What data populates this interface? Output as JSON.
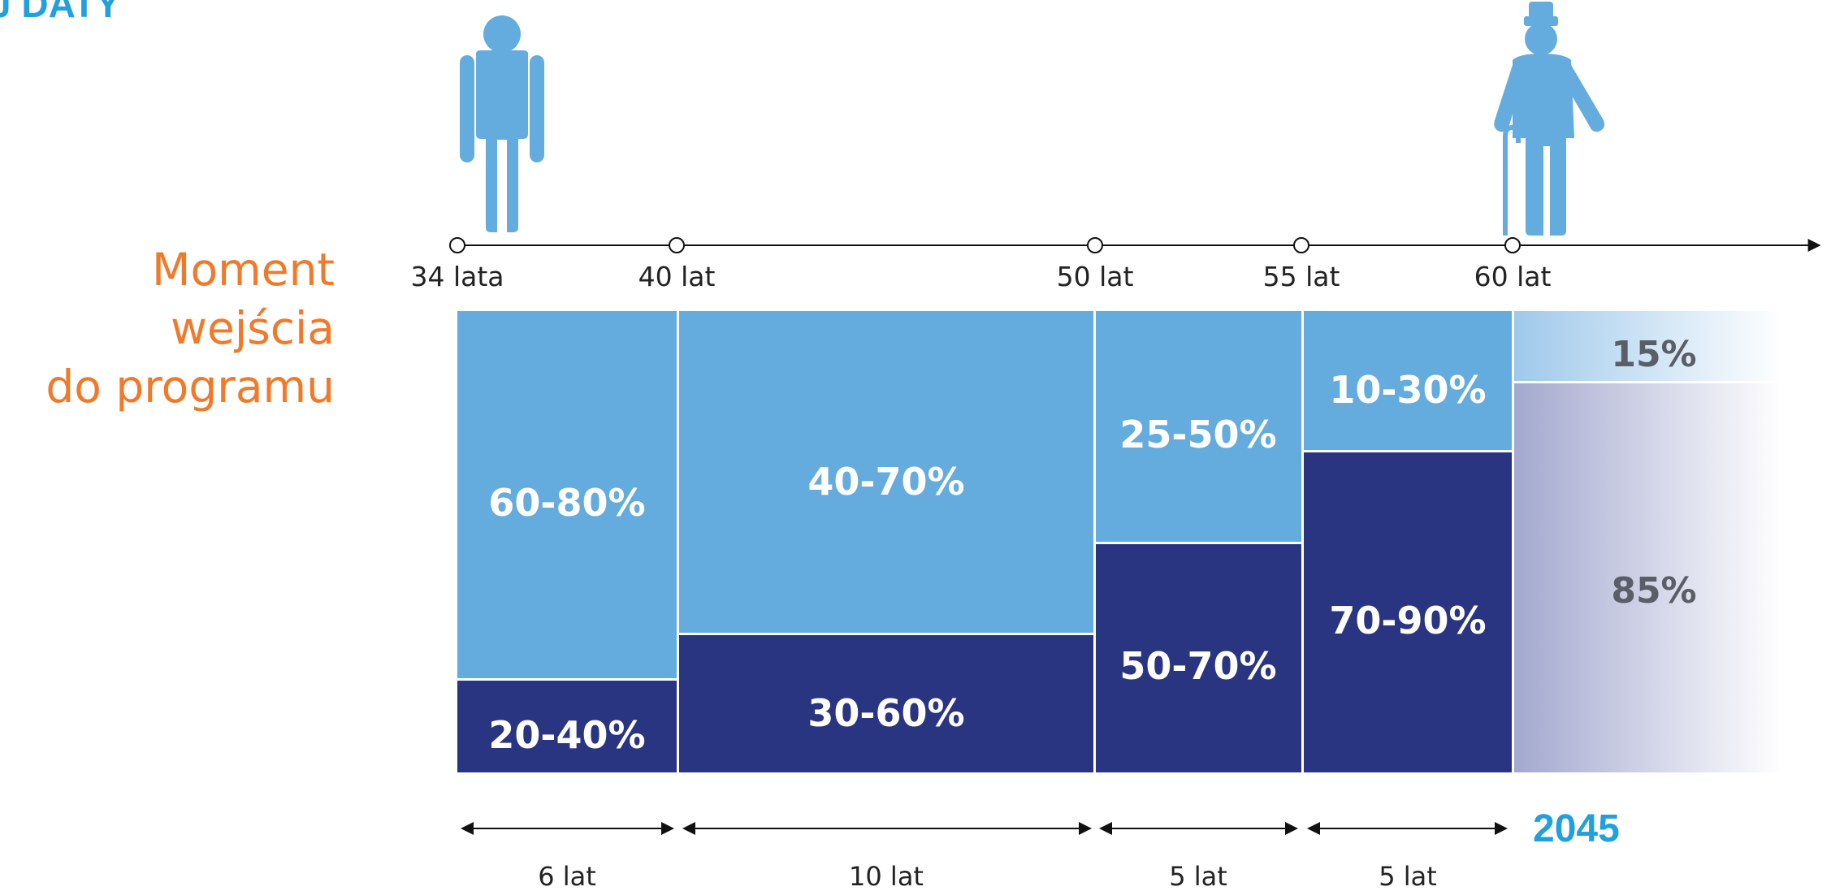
{
  "header": {
    "title_fragment": "J DATY"
  },
  "entry_label": {
    "lines": [
      "Moment",
      "wejścia",
      "do programu"
    ]
  },
  "colors": {
    "light_blue": "#65acde",
    "dark_blue": "#2a3582",
    "accent_orange": "#f07a2a",
    "accent_cyan": "#21a0dc",
    "grey_text": "#5a5e66"
  },
  "icons": [
    "young-person-icon",
    "elderly-person-icon",
    "arrow-right-icon"
  ],
  "timeline": {
    "ages": [
      "34 lata",
      "40 lat",
      "50 lat",
      "55 lat",
      "60 lat"
    ]
  },
  "stages": [
    {
      "top_value": "60-80%",
      "bottom_value": "20-40%",
      "duration": "6 lat"
    },
    {
      "top_value": "40-70%",
      "bottom_value": "30-60%",
      "duration": "10 lat"
    },
    {
      "top_value": "25-50%",
      "bottom_value": "50-70%",
      "duration": "5 lat"
    },
    {
      "top_value": "10-30%",
      "bottom_value": "70-90%",
      "duration": "5 lat"
    }
  ],
  "target": {
    "top_value": "15%",
    "bottom_value": "85%",
    "year": "2045"
  }
}
